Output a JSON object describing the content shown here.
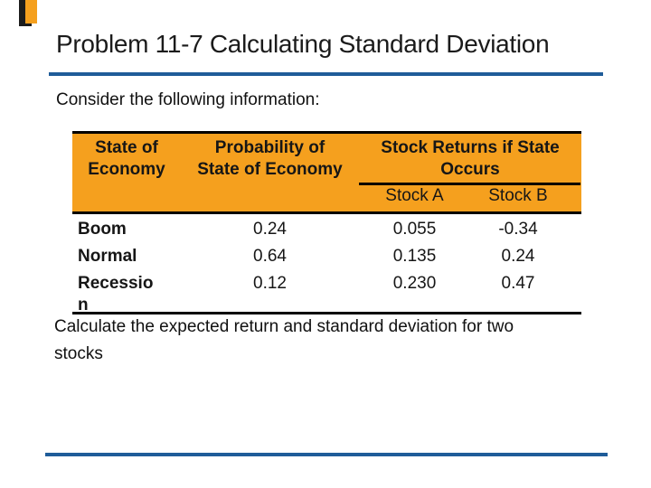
{
  "colors": {
    "accent_blue": "#1F5C99",
    "table_orange": "#F5A01E"
  },
  "header": {
    "title": "Problem 11-7 Calculating Standard Deviation"
  },
  "body": {
    "intro": "Consider the following information:",
    "conclusion": "Calculate the expected return and standard deviation for two\nstocks"
  },
  "table": {
    "col_headers": {
      "state_line1": "State of",
      "state_line2": "Economy",
      "probability_line1": "Probability of",
      "probability_line2": "State of Economy",
      "returns_group_line1": "Stock Returns if State",
      "returns_group_line2": "Occurs"
    },
    "sub_headers": {
      "stock_a": "Stock A",
      "stock_b": "Stock B"
    },
    "rows": [
      {
        "state": "Boom",
        "probability": "0.24",
        "stock_a": "0.055",
        "stock_b": "-0.34"
      },
      {
        "state": "Normal",
        "probability": "0.64",
        "stock_a": "0.135",
        "stock_b": "0.24"
      },
      {
        "state": "Recession",
        "probability": "0.12",
        "stock_a": "0.230",
        "stock_b": "0.47"
      }
    ]
  }
}
